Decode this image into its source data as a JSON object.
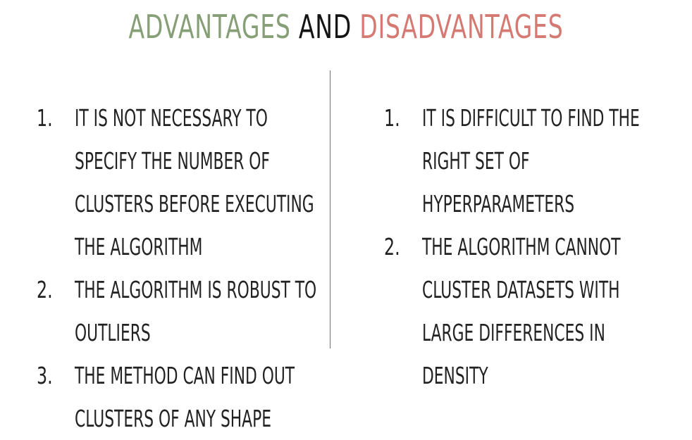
{
  "title": {
    "advantages": "ADVANTAGES",
    "and": "AND",
    "disadvantages": "DISADVANTAGES"
  },
  "colors": {
    "advantages": "#869f76",
    "and": "#141414",
    "disadvantages": "#d57a72"
  },
  "advantages": [
    {
      "number": "1.",
      "lines": [
        "IT IS NOT NECESSARY TO",
        "SPECIFY THE NUMBER OF",
        "CLUSTERS BEFORE EXECUTING",
        "THE ALGORITHM"
      ]
    },
    {
      "number": "2.",
      "lines": [
        "THE ALGORITHM IS ROBUST TO",
        "OUTLIERS"
      ]
    },
    {
      "number": "3.",
      "lines": [
        "THE METHOD CAN FIND OUT",
        "CLUSTERS OF ANY SHAPE"
      ]
    }
  ],
  "disadvantages": [
    {
      "number": "1.",
      "lines": [
        "IT IS DIFFICULT TO FIND THE",
        "RIGHT SET OF",
        "HYPERPARAMETERS"
      ]
    },
    {
      "number": "2.",
      "lines": [
        "THE ALGORITHM CANNOT",
        "CLUSTER DATASETS WITH",
        "LARGE DIFFERENCES IN",
        "DENSITY"
      ]
    }
  ]
}
